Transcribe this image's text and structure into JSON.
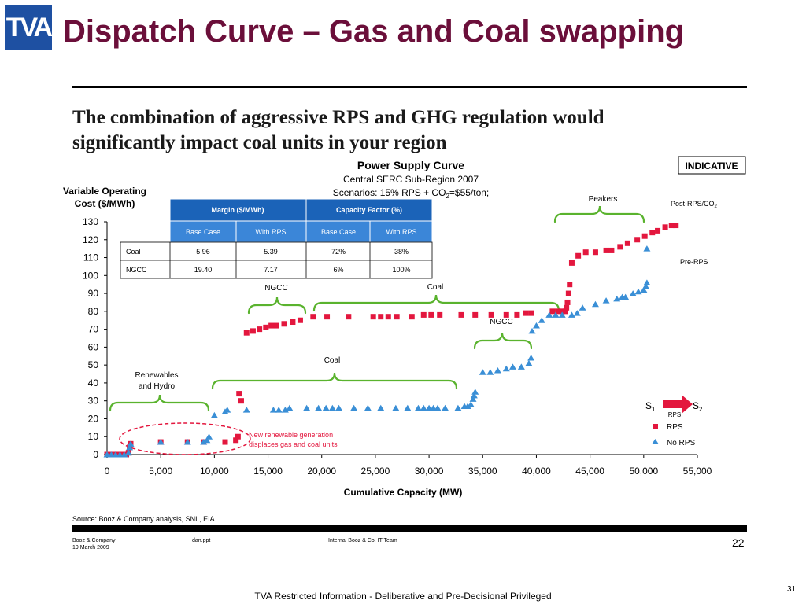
{
  "slide": {
    "logo": "TVA",
    "title": "Dispatch Curve – Gas and Coal swapping",
    "headline_line1": "The combination of aggressive RPS and GHG regulation would",
    "headline_line2": "significantly impact coal units in your region",
    "source": "Source:  Booz & Company analysis, SNL, EIA",
    "footer_company": "Booz & Company",
    "footer_date": "19 March 2009",
    "footer_file": "dan.ppt",
    "footer_team": "Internal Booz & Co. IT Team",
    "inner_page_number": "22",
    "footer_text": "TVA Restricted Information - Deliberative and Pre-Decisional Privileged",
    "slide_number": "31"
  },
  "chart_data": {
    "type": "scatter",
    "title": "Power Supply Curve",
    "subtitle_line1": "Central SERC Sub-Region 2007",
    "subtitle_line2_pre": "Scenarios: 15% RPS + CO",
    "subtitle_line2_sub": "2",
    "subtitle_line2_post": "=$55/ton;",
    "indicative_label": "INDICATIVE",
    "ylabel_line1": "Variable Operating",
    "ylabel_line2": "Cost ($/MWh)",
    "xlabel": "Cumulative Capacity (MW)",
    "xlim": [
      0,
      55000
    ],
    "ylim": [
      0,
      130
    ],
    "x_ticks": [
      0,
      5000,
      10000,
      15000,
      20000,
      25000,
      30000,
      35000,
      40000,
      45000,
      50000,
      55000
    ],
    "x_tick_labels": [
      "0",
      "5,000",
      "10,000",
      "15,000",
      "20,000",
      "25,000",
      "30,000",
      "35,000",
      "40,000",
      "45,000",
      "50,000",
      "55,000"
    ],
    "y_ticks": [
      0,
      10,
      20,
      30,
      40,
      50,
      60,
      70,
      80,
      90,
      100,
      110,
      120,
      130
    ],
    "grid": false,
    "series": [
      {
        "name": "RPS",
        "color": "#e3173e",
        "marker": "square",
        "points": [
          [
            0,
            0
          ],
          [
            300,
            0
          ],
          [
            600,
            0
          ],
          [
            900,
            0
          ],
          [
            1200,
            0
          ],
          [
            1500,
            0
          ],
          [
            1800,
            0
          ],
          [
            2000,
            1
          ],
          [
            2100,
            4
          ],
          [
            2200,
            6
          ],
          [
            5000,
            7
          ],
          [
            7500,
            7
          ],
          [
            9000,
            7
          ],
          [
            11000,
            7
          ],
          [
            12000,
            8
          ],
          [
            12200,
            10
          ],
          [
            12300,
            34
          ],
          [
            12500,
            30
          ],
          [
            13000,
            68
          ],
          [
            13600,
            69
          ],
          [
            14200,
            70
          ],
          [
            14800,
            71
          ],
          [
            15300,
            72
          ],
          [
            15800,
            72
          ],
          [
            16500,
            73
          ],
          [
            17300,
            74
          ],
          [
            18000,
            75
          ],
          [
            19200,
            77
          ],
          [
            20500,
            77
          ],
          [
            22500,
            77
          ],
          [
            24800,
            77
          ],
          [
            25500,
            77
          ],
          [
            26200,
            77
          ],
          [
            27000,
            77
          ],
          [
            28400,
            77
          ],
          [
            29500,
            78
          ],
          [
            30200,
            78
          ],
          [
            31000,
            78
          ],
          [
            33000,
            78
          ],
          [
            34300,
            78
          ],
          [
            35800,
            78
          ],
          [
            37200,
            78
          ],
          [
            38200,
            78
          ],
          [
            39000,
            79
          ],
          [
            39500,
            79
          ],
          [
            41500,
            80
          ],
          [
            42000,
            80
          ],
          [
            42400,
            80
          ],
          [
            42700,
            80
          ],
          [
            42800,
            82
          ],
          [
            42900,
            85
          ],
          [
            43000,
            90
          ],
          [
            43100,
            95
          ],
          [
            43300,
            107
          ],
          [
            43900,
            111
          ],
          [
            44600,
            113
          ],
          [
            45500,
            113
          ],
          [
            46500,
            114
          ],
          [
            47000,
            114
          ],
          [
            47800,
            116
          ],
          [
            48500,
            118
          ],
          [
            49400,
            120
          ],
          [
            50100,
            122
          ],
          [
            50800,
            124
          ],
          [
            51300,
            125
          ],
          [
            52000,
            127
          ],
          [
            52600,
            128
          ],
          [
            53000,
            128
          ]
        ]
      },
      {
        "name": "No RPS",
        "color": "#3a8fd6",
        "marker": "triangle",
        "points": [
          [
            0,
            0
          ],
          [
            400,
            0
          ],
          [
            800,
            0
          ],
          [
            1200,
            0
          ],
          [
            1600,
            0
          ],
          [
            2000,
            1
          ],
          [
            2100,
            4
          ],
          [
            2200,
            6
          ],
          [
            5000,
            7
          ],
          [
            7500,
            7
          ],
          [
            9000,
            7
          ],
          [
            9300,
            8
          ],
          [
            9500,
            10
          ],
          [
            10000,
            22
          ],
          [
            11000,
            24
          ],
          [
            11200,
            25
          ],
          [
            13000,
            25
          ],
          [
            15500,
            25
          ],
          [
            16000,
            25
          ],
          [
            16600,
            25
          ],
          [
            17000,
            26
          ],
          [
            18600,
            26
          ],
          [
            19700,
            26
          ],
          [
            20400,
            26
          ],
          [
            21000,
            26
          ],
          [
            21600,
            26
          ],
          [
            23000,
            26
          ],
          [
            24300,
            26
          ],
          [
            25500,
            26
          ],
          [
            26900,
            26
          ],
          [
            28000,
            26
          ],
          [
            29000,
            26
          ],
          [
            29500,
            26
          ],
          [
            30000,
            26
          ],
          [
            30400,
            26
          ],
          [
            30800,
            26
          ],
          [
            31500,
            26
          ],
          [
            32700,
            26
          ],
          [
            33300,
            27
          ],
          [
            33600,
            27
          ],
          [
            33900,
            28
          ],
          [
            34100,
            31
          ],
          [
            34200,
            33
          ],
          [
            34300,
            35
          ],
          [
            35000,
            46
          ],
          [
            35700,
            46
          ],
          [
            36400,
            47
          ],
          [
            37200,
            48
          ],
          [
            37800,
            49
          ],
          [
            38600,
            49
          ],
          [
            39300,
            51
          ],
          [
            39500,
            54
          ],
          [
            39600,
            69
          ],
          [
            40000,
            72
          ],
          [
            40500,
            75
          ],
          [
            41200,
            78
          ],
          [
            41800,
            78
          ],
          [
            42400,
            78
          ],
          [
            43300,
            78
          ],
          [
            43800,
            79
          ],
          [
            44300,
            82
          ],
          [
            45500,
            84
          ],
          [
            46500,
            86
          ],
          [
            47500,
            87
          ],
          [
            48000,
            88
          ],
          [
            48300,
            88
          ],
          [
            49000,
            90
          ],
          [
            49500,
            91
          ],
          [
            50000,
            92
          ],
          [
            50200,
            94
          ],
          [
            50300,
            96
          ],
          [
            50300,
            115
          ]
        ]
      }
    ],
    "annotations": {
      "renewables": "Renewables and Hydro",
      "renewables_line1": "Renewables",
      "renewables_line2": "and Hydro",
      "ngcc_upper": "NGCC",
      "coal_upper": "Coal",
      "peakers": "Peakers",
      "ngcc_lower": "NGCC",
      "coal_lower": "Coal",
      "new_renewable_line1": "New renewable generation",
      "new_renewable_line2": "displaces gas and coal units",
      "post_rps_pre": "Post-RPS/CO",
      "post_rps_sub": "2",
      "pre_rps": "Pre-RPS"
    },
    "legend": {
      "placement": "bottom-right",
      "s1": "S",
      "s1_sub": "1",
      "s2": "S",
      "s2_sub": "2",
      "arrow_label": "RPS",
      "rps": "RPS",
      "no_rps": "No RPS"
    },
    "table": {
      "header_margin": "Margin ($/MWh)",
      "header_capacity": "Capacity Factor (%)",
      "sub_headers": [
        "Base Case",
        "With RPS",
        "Base Case",
        "With RPS"
      ],
      "rows": [
        {
          "label": "Coal",
          "values": [
            "5.96",
            "5.39",
            "72%",
            "38%"
          ]
        },
        {
          "label": "NGCC",
          "values": [
            "19.40",
            "7.17",
            "6%",
            "100%"
          ]
        }
      ]
    }
  }
}
